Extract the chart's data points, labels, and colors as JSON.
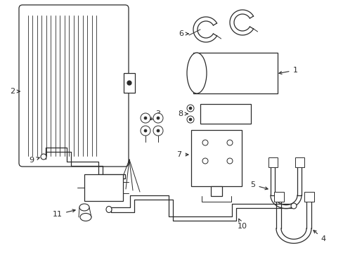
{
  "bg_color": "#ffffff",
  "lc": "#2a2a2a",
  "lw": 0.9,
  "fig_w": 4.89,
  "fig_h": 3.6,
  "dpi": 100
}
